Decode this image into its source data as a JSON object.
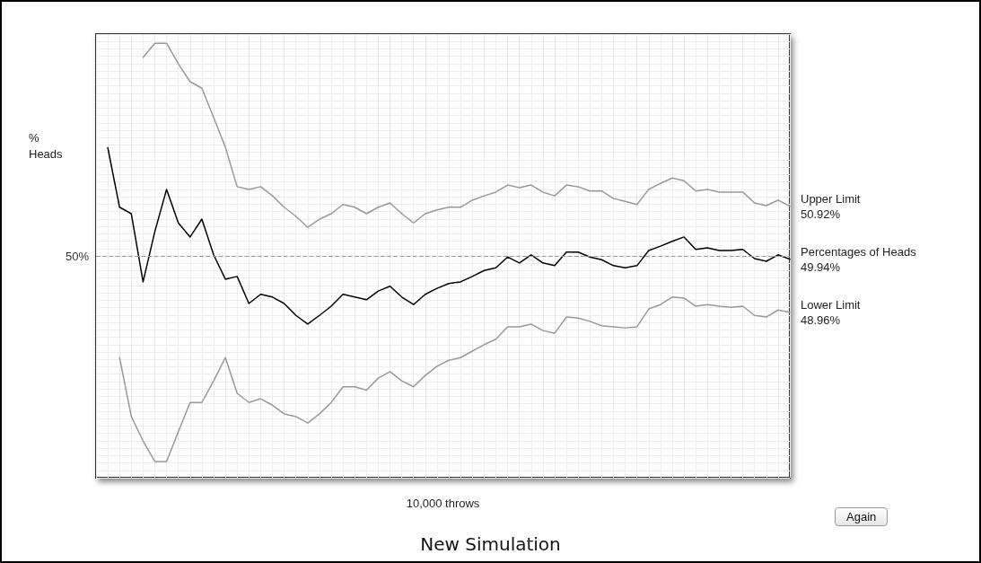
{
  "chart_data": {
    "type": "line",
    "title": "New Simulation",
    "xlabel": "10,000 throws",
    "ylabel": "%\nHeads",
    "annotations": [
      "Again"
    ],
    "categories": [
      null,
      null,
      null,
      null,
      null,
      null,
      null,
      null,
      null,
      null,
      null,
      null,
      null,
      null,
      null,
      null,
      null,
      null,
      null,
      null,
      null,
      null,
      null,
      null,
      null,
      null,
      null,
      null,
      null,
      null,
      null,
      null,
      null,
      null,
      null,
      null,
      null,
      null,
      null,
      null,
      null,
      null,
      null,
      null,
      null,
      null,
      null,
      null,
      null,
      null,
      null,
      null,
      null,
      null,
      null,
      null,
      null,
      null,
      null,
      null
    ],
    "ylim": [
      45.9,
      54.1
    ],
    "grid": true,
    "legend": false,
    "marker": "none",
    "line_style": "solid",
    "ref_lines": [
      {
        "axis": "y",
        "value": 50,
        "label": "50%",
        "color": "#999999",
        "line_style": "dashed"
      }
    ],
    "series": [
      {
        "name": "Upper Limit",
        "color": "#999999",
        "values": [
          null,
          null,
          null,
          null,
          53.67,
          53.93,
          53.93,
          53.55,
          53.22,
          53.1,
          52.56,
          52.01,
          51.28,
          51.23,
          51.28,
          51.11,
          50.9,
          50.73,
          50.53,
          50.68,
          50.78,
          50.95,
          50.9,
          50.78,
          50.9,
          50.98,
          50.78,
          50.61,
          50.78,
          50.85,
          50.9,
          50.9,
          51.03,
          51.11,
          51.18,
          51.31,
          51.26,
          51.31,
          51.18,
          51.11,
          51.31,
          51.28,
          51.2,
          51.2,
          51.06,
          51.01,
          50.95,
          51.23,
          51.34,
          51.44,
          51.39,
          51.2,
          51.23,
          51.18,
          51.18,
          51.18,
          50.98,
          50.93,
          51.03,
          50.92
        ],
        "value_labels": [
          null,
          null,
          null,
          null,
          null,
          null,
          null,
          null,
          null,
          null,
          null,
          null,
          null,
          null,
          null,
          null,
          null,
          null,
          null,
          null,
          null,
          null,
          null,
          null,
          null,
          null,
          null,
          null,
          null,
          null,
          null,
          null,
          null,
          null,
          null,
          null,
          null,
          null,
          null,
          null,
          null,
          null,
          null,
          null,
          null,
          null,
          null,
          null,
          null,
          null,
          null,
          null,
          null,
          null,
          null,
          null,
          null,
          null,
          null,
          "50.92%"
        ]
      },
      {
        "name": "Percentages of Heads",
        "color": "#000000",
        "values": [
          null,
          52.0,
          50.9,
          50.78,
          49.52,
          50.45,
          51.23,
          50.61,
          50.35,
          50.68,
          50.02,
          49.57,
          49.62,
          49.12,
          49.29,
          49.24,
          49.12,
          48.9,
          48.74,
          48.9,
          49.07,
          49.29,
          49.24,
          49.19,
          49.35,
          49.44,
          49.24,
          49.1,
          49.29,
          49.4,
          49.49,
          49.52,
          49.62,
          49.73,
          49.78,
          49.98,
          49.87,
          50.02,
          49.87,
          49.82,
          50.07,
          50.07,
          49.98,
          49.93,
          49.82,
          49.78,
          49.82,
          50.1,
          50.18,
          50.27,
          50.35,
          50.12,
          50.15,
          50.1,
          50.1,
          50.12,
          49.95,
          49.9,
          50.02,
          49.94
        ],
        "value_labels": [
          null,
          null,
          null,
          null,
          null,
          null,
          null,
          null,
          null,
          null,
          null,
          null,
          null,
          null,
          null,
          null,
          null,
          null,
          null,
          null,
          null,
          null,
          null,
          null,
          null,
          null,
          null,
          null,
          null,
          null,
          null,
          null,
          null,
          null,
          null,
          null,
          null,
          null,
          null,
          null,
          null,
          null,
          null,
          null,
          null,
          null,
          null,
          null,
          null,
          null,
          null,
          null,
          null,
          null,
          null,
          null,
          null,
          null,
          null,
          "49.94%"
        ]
      },
      {
        "name": "Lower Limit",
        "color": "#999999",
        "values": [
          null,
          null,
          48.12,
          47.03,
          46.58,
          46.2,
          46.2,
          46.75,
          47.29,
          47.29,
          47.69,
          48.12,
          47.46,
          47.29,
          47.36,
          47.24,
          47.08,
          47.03,
          46.91,
          47.08,
          47.29,
          47.58,
          47.58,
          47.52,
          47.74,
          47.86,
          47.69,
          47.58,
          47.79,
          47.96,
          48.07,
          48.12,
          48.24,
          48.36,
          48.46,
          48.69,
          48.69,
          48.74,
          48.62,
          48.57,
          48.87,
          48.85,
          48.79,
          48.71,
          48.69,
          48.67,
          48.69,
          49.02,
          49.1,
          49.24,
          49.22,
          49.07,
          49.1,
          49.07,
          49.05,
          49.07,
          48.9,
          48.87,
          49.0,
          48.96
        ],
        "value_labels": [
          null,
          null,
          null,
          null,
          null,
          null,
          null,
          null,
          null,
          null,
          null,
          null,
          null,
          null,
          null,
          null,
          null,
          null,
          null,
          null,
          null,
          null,
          null,
          null,
          null,
          null,
          null,
          null,
          null,
          null,
          null,
          null,
          null,
          null,
          null,
          null,
          null,
          null,
          null,
          null,
          null,
          null,
          null,
          null,
          null,
          null,
          null,
          null,
          null,
          null,
          null,
          null,
          null,
          null,
          null,
          null,
          null,
          null,
          null,
          "48.96%"
        ]
      }
    ]
  }
}
